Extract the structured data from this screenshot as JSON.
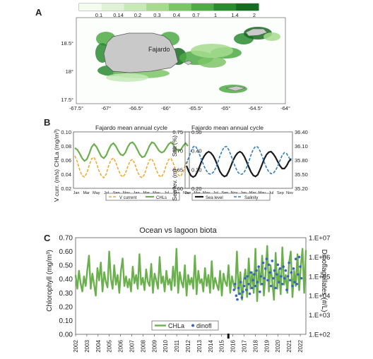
{
  "panels": {
    "a": "A",
    "b": "B",
    "c": "C"
  },
  "colors": {
    "chla": "#6ab04c",
    "vcurrent": "#f5a623",
    "sealevel": "#1a1a1a",
    "salinity": "#2f7fc1",
    "dinofl": "#3a63c4",
    "land": "#c9c9c9",
    "ramp": [
      "#f4fbef",
      "#dff2d6",
      "#c6e9b6",
      "#a6da8e",
      "#7cc567",
      "#4fab45",
      "#2c8a31",
      "#166b1f"
    ]
  },
  "chart_data": [
    {
      "type": "heatmap",
      "id": "map",
      "colorbar_ticks": [
        "0.1",
        "0.14",
        "0.2",
        "0.3",
        "0.4",
        "0.7",
        "1",
        "1.4",
        "2"
      ],
      "x_ticks": [
        "-67.5°",
        "-67°",
        "-66.5°",
        "-66°",
        "-65.5°",
        "-65°",
        "-64.5°",
        "-64°"
      ],
      "y_ticks": [
        "18.5°",
        "18°",
        "17.5°"
      ],
      "xlim": [
        -67.5,
        -64
      ],
      "ylim": [
        17.5,
        18.75
      ],
      "annotation": "Fajardo"
    },
    {
      "type": "line",
      "id": "b-left",
      "title": "Fajardo mean annual cycle",
      "ylabel_left": "CHLa (mg/m³)",
      "ylabel_right_top": "0.50",
      "ylabel_right": "V curr. (m/s)",
      "left_ticks": [
        "0.10",
        "0.08",
        "0.06",
        "0.04",
        "0.02"
      ],
      "right_ticks": [
        "0.50",
        "0.40",
        "0.30",
        "0.20"
      ],
      "ylim_left": [
        0.02,
        0.1
      ],
      "ylim_right": [
        0.2,
        0.5
      ],
      "x_ticks": [
        "Jan",
        "Mar",
        "May",
        "Jul",
        "Sep",
        "Nov",
        "Jan",
        "Mar",
        "May",
        "Jul",
        "Sep",
        "Nov"
      ],
      "legend": [
        "V current",
        "CHLs"
      ],
      "series": [
        {
          "name": "CHLs",
          "axis": "right",
          "values": [
            0.415,
            0.405,
            0.385,
            0.36,
            0.345,
            0.355,
            0.385,
            0.42,
            0.435,
            0.42,
            0.395,
            0.37,
            0.36,
            0.375,
            0.405,
            0.43,
            0.44,
            0.425,
            0.4,
            0.38,
            0.375,
            0.39,
            0.42,
            0.44,
            0.445,
            0.43,
            0.405,
            0.38,
            0.365,
            0.37,
            0.395,
            0.425,
            0.445,
            0.44,
            0.42,
            0.4,
            0.39,
            0.395,
            0.415,
            0.435,
            0.445,
            0.43,
            0.41,
            0.4,
            0.405,
            0.425,
            0.44,
            0.425
          ]
        },
        {
          "name": "V current",
          "axis": "left",
          "values": [
            0.066,
            0.058,
            0.046,
            0.038,
            0.036,
            0.042,
            0.053,
            0.062,
            0.064,
            0.056,
            0.045,
            0.038,
            0.035,
            0.04,
            0.052,
            0.06,
            0.063,
            0.057,
            0.047,
            0.039,
            0.036,
            0.041,
            0.051,
            0.059,
            0.061,
            0.054,
            0.044,
            0.037,
            0.035,
            0.04,
            0.051,
            0.06,
            0.062,
            0.055,
            0.045,
            0.038,
            0.036,
            0.042,
            0.053,
            0.061,
            0.062,
            0.055,
            0.045,
            0.039,
            0.037,
            0.043,
            0.054,
            0.062
          ]
        }
      ]
    },
    {
      "type": "line",
      "id": "b-right",
      "title": "Fajardo mean annual cycle",
      "ylabel_left": "Salt (%)",
      "ylabel_left2": "Sea lev. (m)",
      "left_ticks": [
        "0.75",
        "0.70",
        "0.65",
        "0.60"
      ],
      "right_ticks": [
        "36.40",
        "36.10",
        "35.80",
        "35.50",
        "35.20"
      ],
      "ylim_left": [
        0.6,
        0.8
      ],
      "ylim_right": [
        35.2,
        36.4
      ],
      "x_ticks": [
        "Jan",
        "Mar",
        "May",
        "Jul",
        "Sep",
        "Nov",
        "Jan",
        "Mar",
        "May",
        "Jul",
        "Sep",
        "Nov"
      ],
      "legend": [
        "Sea level",
        "Salinity"
      ],
      "series": [
        {
          "name": "Sea level",
          "axis": "left",
          "values": [
            0.68,
            0.66,
            0.645,
            0.64,
            0.645,
            0.66,
            0.68,
            0.7,
            0.715,
            0.725,
            0.73,
            0.725,
            0.715,
            0.7,
            0.68,
            0.66,
            0.648,
            0.642,
            0.645,
            0.66,
            0.68,
            0.7,
            0.715,
            0.725,
            0.73,
            0.725,
            0.712,
            0.695,
            0.675,
            0.658,
            0.646,
            0.642,
            0.648,
            0.665,
            0.685,
            0.705,
            0.72,
            0.728,
            0.73,
            0.722,
            0.71,
            0.695,
            0.68,
            0.67,
            0.67,
            0.68,
            0.695,
            0.705
          ]
        },
        {
          "name": "Salinity",
          "axis": "right",
          "values": [
            35.72,
            35.85,
            35.98,
            36.08,
            36.1,
            36.02,
            35.9,
            35.78,
            35.66,
            35.57,
            35.51,
            35.5,
            35.54,
            35.62,
            35.74,
            35.88,
            36.0,
            36.08,
            36.09,
            36.02,
            35.9,
            35.77,
            35.65,
            35.55,
            35.5,
            35.5,
            35.55,
            35.64,
            35.77,
            35.91,
            36.03,
            36.09,
            36.08,
            36.0,
            35.88,
            35.75,
            35.63,
            35.55,
            35.51,
            35.52,
            35.58,
            35.67,
            35.79,
            35.9,
            35.96,
            35.94,
            35.86,
            35.78
          ]
        }
      ]
    },
    {
      "type": "line",
      "id": "c",
      "title": "Ocean vs lagoon biota",
      "ylabel_left": "Chlorophyll (mg/m³)",
      "ylabel_right": "Dinoflagellates (#/L)",
      "left_ticks": [
        "0.70",
        "0.60",
        "0.50",
        "0.40",
        "0.30",
        "0.20",
        "0.10",
        "0.00"
      ],
      "right_ticks": [
        "1.E+07",
        "1.E+06",
        "1.E+05",
        "1.E+04",
        "1.E+03",
        "1.E+02"
      ],
      "ylim_left": [
        0,
        0.7
      ],
      "ylim_right": [
        2,
        7
      ],
      "x_ticks": [
        "2002",
        "2003",
        "2004",
        "2005",
        "2006",
        "2007",
        "2008",
        "2009",
        "2010",
        "2011",
        "2012",
        "2013",
        "2014",
        "2015",
        "2016",
        "2017",
        "2018",
        "2019",
        "2020",
        "2021",
        "2022"
      ],
      "xlim": [
        2002,
        2022.5
      ],
      "legend": [
        "CHLa",
        "dinofl"
      ],
      "marker": [
        2015.6
      ],
      "series": [
        {
          "name": "CHLa",
          "axis": "left",
          "values": [
            0.43,
            0.33,
            0.46,
            0.37,
            0.31,
            0.42,
            0.35,
            0.47,
            0.57,
            0.33,
            0.44,
            0.36,
            0.28,
            0.48,
            0.39,
            0.52,
            0.31,
            0.45,
            0.38,
            0.34,
            0.6,
            0.4,
            0.33,
            0.5,
            0.36,
            0.43,
            0.3,
            0.46,
            0.55,
            0.35,
            0.42,
            0.34,
            0.4,
            0.31,
            0.49,
            0.37,
            0.43,
            0.33,
            0.58,
            0.36,
            0.41,
            0.32,
            0.47,
            0.38,
            0.35,
            0.51,
            0.3,
            0.44,
            0.39,
            0.33,
            0.56,
            0.37,
            0.42,
            0.31,
            0.46,
            0.36,
            0.4,
            0.32,
            0.49,
            0.35,
            0.62,
            0.3,
            0.45,
            0.38,
            0.34,
            0.5,
            0.28,
            0.43,
            0.36,
            0.41,
            0.33,
            0.57,
            0.29,
            0.46,
            0.37,
            0.4,
            0.31,
            0.48,
            0.35,
            0.43,
            0.3,
            0.53,
            0.33,
            0.41,
            0.36,
            0.32,
            0.46,
            0.28,
            0.44,
            0.38,
            0.35,
            0.5,
            0.3,
            0.42,
            0.36,
            0.33,
            0.6,
            0.29,
            0.45,
            0.25,
            0.39,
            0.47,
            0.27,
            0.55,
            0.33,
            0.45,
            0.3,
            0.62,
            0.24,
            0.48,
            0.36,
            0.57,
            0.28,
            0.44,
            0.64,
            0.31,
            0.5,
            0.38,
            0.25,
            0.59,
            0.33,
            0.47,
            0.29,
            0.63,
            0.36,
            0.43,
            0.3,
            0.52,
            0.6,
            0.27,
            0.46,
            0.35,
            0.58,
            0.32,
            0.5,
            0.62,
            0.3,
            0.61
          ]
        },
        {
          "name": "dinofl",
          "axis": "right",
          "points": [
            [
              2016.1,
              4.3
            ],
            [
              2016.2,
              4.6
            ],
            [
              2016.3,
              4.0
            ],
            [
              2016.4,
              3.8
            ],
            [
              2016.5,
              4.4
            ],
            [
              2016.6,
              4.1
            ],
            [
              2016.7,
              4.7
            ],
            [
              2016.8,
              3.9
            ],
            [
              2016.9,
              4.2
            ],
            [
              2017.0,
              4.5
            ],
            [
              2017.1,
              4.9
            ],
            [
              2017.2,
              4.3
            ],
            [
              2017.3,
              5.0
            ],
            [
              2017.4,
              4.6
            ],
            [
              2017.5,
              4.1
            ],
            [
              2017.6,
              5.2
            ],
            [
              2017.7,
              4.4
            ],
            [
              2017.8,
              4.8
            ],
            [
              2017.9,
              5.1
            ],
            [
              2018.0,
              4.5
            ],
            [
              2018.1,
              5.3
            ],
            [
              2018.2,
              4.7
            ],
            [
              2018.3,
              5.5
            ],
            [
              2018.4,
              4.2
            ],
            [
              2018.5,
              5.0
            ],
            [
              2018.6,
              4.6
            ],
            [
              2018.7,
              5.7
            ],
            [
              2018.8,
              4.9
            ],
            [
              2018.9,
              5.4
            ],
            [
              2019.0,
              5.9
            ],
            [
              2019.1,
              4.8
            ],
            [
              2019.2,
              5.6
            ],
            [
              2019.3,
              5.2
            ],
            [
              2019.4,
              4.5
            ],
            [
              2019.5,
              5.8
            ],
            [
              2019.6,
              4.9
            ],
            [
              2019.7,
              5.3
            ],
            [
              2019.8,
              4.4
            ],
            [
              2019.9,
              5.1
            ],
            [
              2020.0,
              5.6
            ],
            [
              2020.1,
              4.7
            ],
            [
              2020.2,
              5.4
            ],
            [
              2020.3,
              5.0
            ],
            [
              2020.4,
              4.6
            ],
            [
              2020.5,
              5.5
            ],
            [
              2020.6,
              4.9
            ],
            [
              2020.7,
              5.3
            ],
            [
              2020.8,
              4.3
            ],
            [
              2020.9,
              5.0
            ],
            [
              2021.0,
              5.7
            ],
            [
              2021.1,
              4.8
            ],
            [
              2021.2,
              5.2
            ],
            [
              2021.3,
              4.5
            ],
            [
              2021.4,
              5.4
            ],
            [
              2021.5,
              4.7
            ],
            [
              2021.6,
              5.9
            ],
            [
              2021.7,
              4.6
            ],
            [
              2021.8,
              5.1
            ],
            [
              2021.9,
              6.0
            ],
            [
              2022.0,
              5.5
            ],
            [
              2022.1,
              4.9
            ]
          ]
        }
      ]
    }
  ]
}
